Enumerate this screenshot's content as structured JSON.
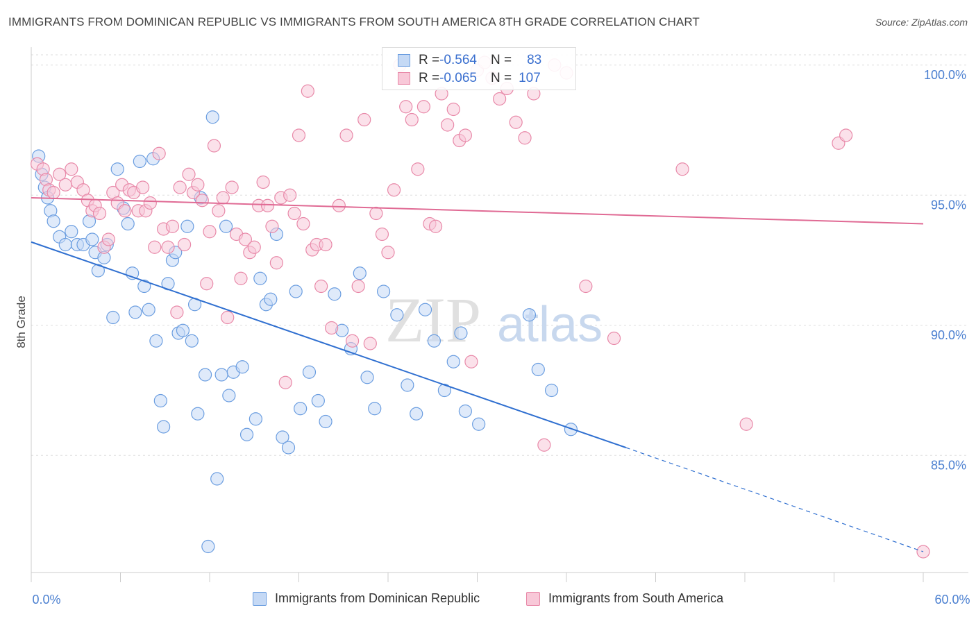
{
  "title": "IMMIGRANTS FROM DOMINICAN REPUBLIC VS IMMIGRANTS FROM SOUTH AMERICA 8TH GRADE CORRELATION CHART",
  "source": "Source: ZipAtlas.com",
  "watermark": {
    "zip": "ZIP",
    "atlas": "atlas"
  },
  "legend_top": {
    "rows": [
      {
        "r_label": "R = ",
        "r_value": "-0.564",
        "n_label": "N = ",
        "n_value": "83"
      },
      {
        "r_label": "R = ",
        "r_value": "-0.065",
        "n_label": "N = ",
        "n_value": "107"
      }
    ]
  },
  "chart_data": {
    "type": "scatter",
    "title": "IMMIGRANTS FROM DOMINICAN REPUBLIC VS IMMIGRANTS FROM SOUTH AMERICA 8TH GRADE CORRELATION CHART",
    "xlabel": "",
    "ylabel": "8th Grade",
    "xlim": [
      0,
      60
    ],
    "ylim": [
      80.5,
      100.5
    ],
    "x_tick_labels": [
      "0.0%",
      "60.0%"
    ],
    "y_ticks": [
      85,
      90,
      95,
      100
    ],
    "y_tick_labels": [
      "85.0%",
      "90.0%",
      "95.0%",
      "100.0%"
    ],
    "grid": true,
    "legend_position": "bottom",
    "series": [
      {
        "name": "Immigrants from Dominican Republic",
        "color": "#6a9de0",
        "fill": "#c5d9f5",
        "r": -0.564,
        "n": 83,
        "trend": {
          "x0": 0,
          "y0": 93.2,
          "x1": 40,
          "y1": 85.3,
          "dash_to_x": 60,
          "dash_to_y": 81.3
        },
        "points": [
          [
            0.5,
            96.5
          ],
          [
            0.7,
            95.8
          ],
          [
            0.9,
            95.3
          ],
          [
            1.1,
            94.9
          ],
          [
            1.3,
            94.4
          ],
          [
            1.5,
            94.0
          ],
          [
            1.9,
            93.4
          ],
          [
            2.3,
            93.1
          ],
          [
            2.7,
            93.6
          ],
          [
            3.1,
            93.1
          ],
          [
            3.5,
            93.1
          ],
          [
            3.9,
            94.0
          ],
          [
            4.1,
            93.3
          ],
          [
            4.3,
            92.8
          ],
          [
            4.5,
            92.1
          ],
          [
            4.9,
            92.6
          ],
          [
            5.1,
            93.1
          ],
          [
            5.5,
            90.3
          ],
          [
            5.8,
            96.0
          ],
          [
            6.2,
            94.5
          ],
          [
            6.5,
            93.9
          ],
          [
            6.8,
            92.0
          ],
          [
            7.0,
            90.5
          ],
          [
            7.3,
            96.3
          ],
          [
            7.6,
            91.5
          ],
          [
            7.9,
            90.6
          ],
          [
            8.2,
            96.4
          ],
          [
            8.4,
            89.4
          ],
          [
            8.7,
            87.1
          ],
          [
            8.9,
            86.1
          ],
          [
            9.2,
            91.6
          ],
          [
            9.5,
            92.5
          ],
          [
            9.7,
            92.8
          ],
          [
            9.9,
            89.7
          ],
          [
            10.2,
            89.8
          ],
          [
            10.5,
            93.8
          ],
          [
            10.8,
            89.4
          ],
          [
            11.0,
            90.8
          ],
          [
            11.2,
            86.6
          ],
          [
            11.4,
            94.9
          ],
          [
            11.7,
            88.1
          ],
          [
            11.9,
            81.5
          ],
          [
            12.2,
            98.0
          ],
          [
            12.5,
            84.1
          ],
          [
            12.8,
            88.1
          ],
          [
            13.1,
            93.8
          ],
          [
            13.3,
            87.3
          ],
          [
            13.6,
            88.2
          ],
          [
            14.2,
            88.4
          ],
          [
            14.5,
            85.8
          ],
          [
            15.1,
            86.4
          ],
          [
            15.4,
            91.8
          ],
          [
            15.8,
            90.8
          ],
          [
            16.1,
            91.0
          ],
          [
            16.5,
            93.5
          ],
          [
            16.9,
            85.7
          ],
          [
            17.3,
            85.3
          ],
          [
            17.8,
            91.3
          ],
          [
            18.1,
            86.8
          ],
          [
            18.7,
            88.2
          ],
          [
            19.3,
            87.1
          ],
          [
            19.8,
            86.3
          ],
          [
            20.4,
            91.2
          ],
          [
            20.9,
            89.8
          ],
          [
            21.5,
            89.1
          ],
          [
            22.1,
            92.0
          ],
          [
            22.6,
            88.0
          ],
          [
            23.1,
            86.8
          ],
          [
            23.7,
            91.3
          ],
          [
            24.6,
            90.4
          ],
          [
            25.3,
            87.7
          ],
          [
            25.9,
            86.6
          ],
          [
            26.5,
            90.6
          ],
          [
            27.1,
            89.4
          ],
          [
            27.8,
            87.5
          ],
          [
            28.4,
            88.6
          ],
          [
            28.9,
            89.7
          ],
          [
            29.2,
            86.7
          ],
          [
            30.1,
            86.2
          ],
          [
            33.5,
            90.4
          ],
          [
            34.1,
            88.3
          ],
          [
            35.0,
            87.5
          ],
          [
            36.3,
            86.0
          ]
        ]
      },
      {
        "name": "Immigrants from South America",
        "color": "#e888a8",
        "fill": "#f8c8d8",
        "r": -0.065,
        "n": 107,
        "trend": {
          "x0": 0,
          "y0": 94.9,
          "x1": 60,
          "y1": 93.9
        },
        "points": [
          [
            0.4,
            96.2
          ],
          [
            0.8,
            96.0
          ],
          [
            1.0,
            95.6
          ],
          [
            1.2,
            95.2
          ],
          [
            1.5,
            95.1
          ],
          [
            1.9,
            95.8
          ],
          [
            2.3,
            95.4
          ],
          [
            2.7,
            96.0
          ],
          [
            3.1,
            95.5
          ],
          [
            3.5,
            95.2
          ],
          [
            3.8,
            94.8
          ],
          [
            4.1,
            94.4
          ],
          [
            4.3,
            94.6
          ],
          [
            4.6,
            94.3
          ],
          [
            4.9,
            93.0
          ],
          [
            5.2,
            93.3
          ],
          [
            5.5,
            95.1
          ],
          [
            5.8,
            94.7
          ],
          [
            6.1,
            95.4
          ],
          [
            6.3,
            94.4
          ],
          [
            6.6,
            95.2
          ],
          [
            6.9,
            95.1
          ],
          [
            7.2,
            94.4
          ],
          [
            7.5,
            95.3
          ],
          [
            7.7,
            94.4
          ],
          [
            8.0,
            94.7
          ],
          [
            8.3,
            93.0
          ],
          [
            8.6,
            96.6
          ],
          [
            8.9,
            93.7
          ],
          [
            9.2,
            93.0
          ],
          [
            9.5,
            93.8
          ],
          [
            9.8,
            90.5
          ],
          [
            10.0,
            95.3
          ],
          [
            10.3,
            93.1
          ],
          [
            10.6,
            95.8
          ],
          [
            10.9,
            95.1
          ],
          [
            11.2,
            95.4
          ],
          [
            11.5,
            94.8
          ],
          [
            11.8,
            91.6
          ],
          [
            12.0,
            93.6
          ],
          [
            12.3,
            96.9
          ],
          [
            12.6,
            94.4
          ],
          [
            12.9,
            94.9
          ],
          [
            13.2,
            90.3
          ],
          [
            13.5,
            95.3
          ],
          [
            13.8,
            93.5
          ],
          [
            14.1,
            91.8
          ],
          [
            14.4,
            93.3
          ],
          [
            14.7,
            92.8
          ],
          [
            15.0,
            93.0
          ],
          [
            15.3,
            94.6
          ],
          [
            15.6,
            95.5
          ],
          [
            15.9,
            94.6
          ],
          [
            16.2,
            93.8
          ],
          [
            16.5,
            92.4
          ],
          [
            16.8,
            94.9
          ],
          [
            17.1,
            87.8
          ],
          [
            17.4,
            95.0
          ],
          [
            17.7,
            94.3
          ],
          [
            18.0,
            97.3
          ],
          [
            18.3,
            93.9
          ],
          [
            18.6,
            99.0
          ],
          [
            18.9,
            92.9
          ],
          [
            19.2,
            93.1
          ],
          [
            19.5,
            91.5
          ],
          [
            19.8,
            93.1
          ],
          [
            20.2,
            89.9
          ],
          [
            20.7,
            94.6
          ],
          [
            21.2,
            97.3
          ],
          [
            21.6,
            89.4
          ],
          [
            22.0,
            91.5
          ],
          [
            22.4,
            97.9
          ],
          [
            22.8,
            89.3
          ],
          [
            23.2,
            94.3
          ],
          [
            23.6,
            93.5
          ],
          [
            24.0,
            92.8
          ],
          [
            24.4,
            95.2
          ],
          [
            24.8,
            100.0
          ],
          [
            25.2,
            98.4
          ],
          [
            25.6,
            97.9
          ],
          [
            26.0,
            96.0
          ],
          [
            26.4,
            98.4
          ],
          [
            26.8,
            93.9
          ],
          [
            27.2,
            93.8
          ],
          [
            27.6,
            98.9
          ],
          [
            28.0,
            97.7
          ],
          [
            28.4,
            98.3
          ],
          [
            28.8,
            97.1
          ],
          [
            29.2,
            97.3
          ],
          [
            29.6,
            88.6
          ],
          [
            30.0,
            99.8
          ],
          [
            30.5,
            100.1
          ],
          [
            31.0,
            99.5
          ],
          [
            31.5,
            98.7
          ],
          [
            32.0,
            99.1
          ],
          [
            32.6,
            97.8
          ],
          [
            33.2,
            97.2
          ],
          [
            33.8,
            98.9
          ],
          [
            34.5,
            85.4
          ],
          [
            35.2,
            100.0
          ],
          [
            36.0,
            99.7
          ],
          [
            37.3,
            91.5
          ],
          [
            39.2,
            89.5
          ],
          [
            43.8,
            96.0
          ],
          [
            48.1,
            86.2
          ],
          [
            54.3,
            97.0
          ],
          [
            54.8,
            97.3
          ],
          [
            60.0,
            81.3
          ]
        ]
      }
    ]
  },
  "bottom_legend": {
    "items": [
      "Immigrants from Dominican Republic",
      "Immigrants from South America"
    ]
  }
}
